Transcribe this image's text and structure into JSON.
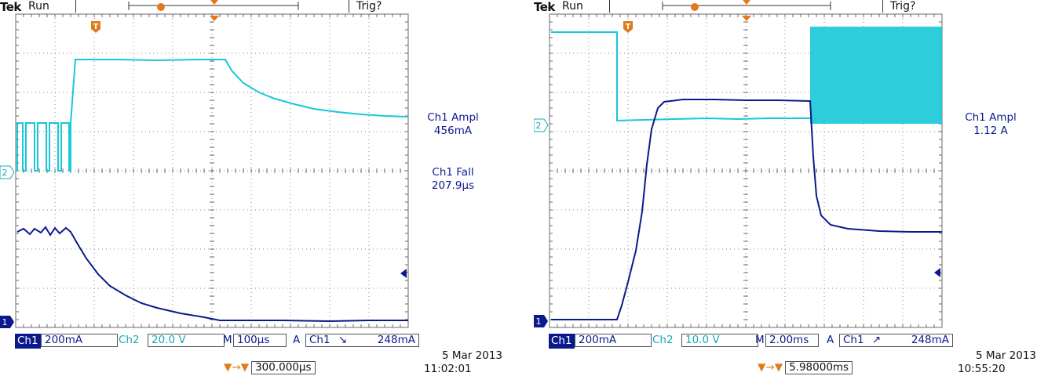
{
  "colors": {
    "ch1": "#0a1a8c",
    "ch2": "#17c8d8",
    "trigger": "#e07a1a",
    "grid": "#6a6a6a"
  },
  "scopes": [
    {
      "brand": "Tek",
      "mode": "Run",
      "trig_status": "Trig?",
      "trigger_marker": "T",
      "ch2_marker": "2",
      "ch1_marker": "1",
      "measurements": [
        {
          "label": "Ch1 Ampl",
          "value": "456mA"
        },
        {
          "label": "Ch1 Fall",
          "value": "207.9µs"
        }
      ],
      "bottom": {
        "ch1": "Ch1",
        "ch1_scale": "200mA",
        "ch2": "Ch2",
        "ch2_scale": "20.0 V",
        "m": "M",
        "timebase": "100µs",
        "a": "A",
        "trig_src": "Ch1",
        "slope": "falling",
        "slope_glyph": "↘",
        "trig_level": "248mA"
      },
      "delay": "300.000µs",
      "date": "5 Mar  2013",
      "time": "11:02:01"
    },
    {
      "brand": "Tek",
      "mode": "Run",
      "trig_status": "Trig?",
      "trigger_marker": "T",
      "ch2_marker": "2",
      "ch1_marker": "1",
      "measurements": [
        {
          "label": "Ch1 Ampl",
          "value": "1.12 A"
        }
      ],
      "bottom": {
        "ch1": "Ch1",
        "ch1_scale": "200mA",
        "ch2": "Ch2",
        "ch2_scale": "10.0 V",
        "m": "M",
        "timebase": "2.00ms",
        "a": "A",
        "trig_src": "Ch1",
        "slope": "rising",
        "slope_glyph": "↗",
        "trig_level": "248mA"
      },
      "delay": "5.98000ms",
      "date": "5 Mar  2013",
      "time": "10:55:20"
    }
  ]
}
